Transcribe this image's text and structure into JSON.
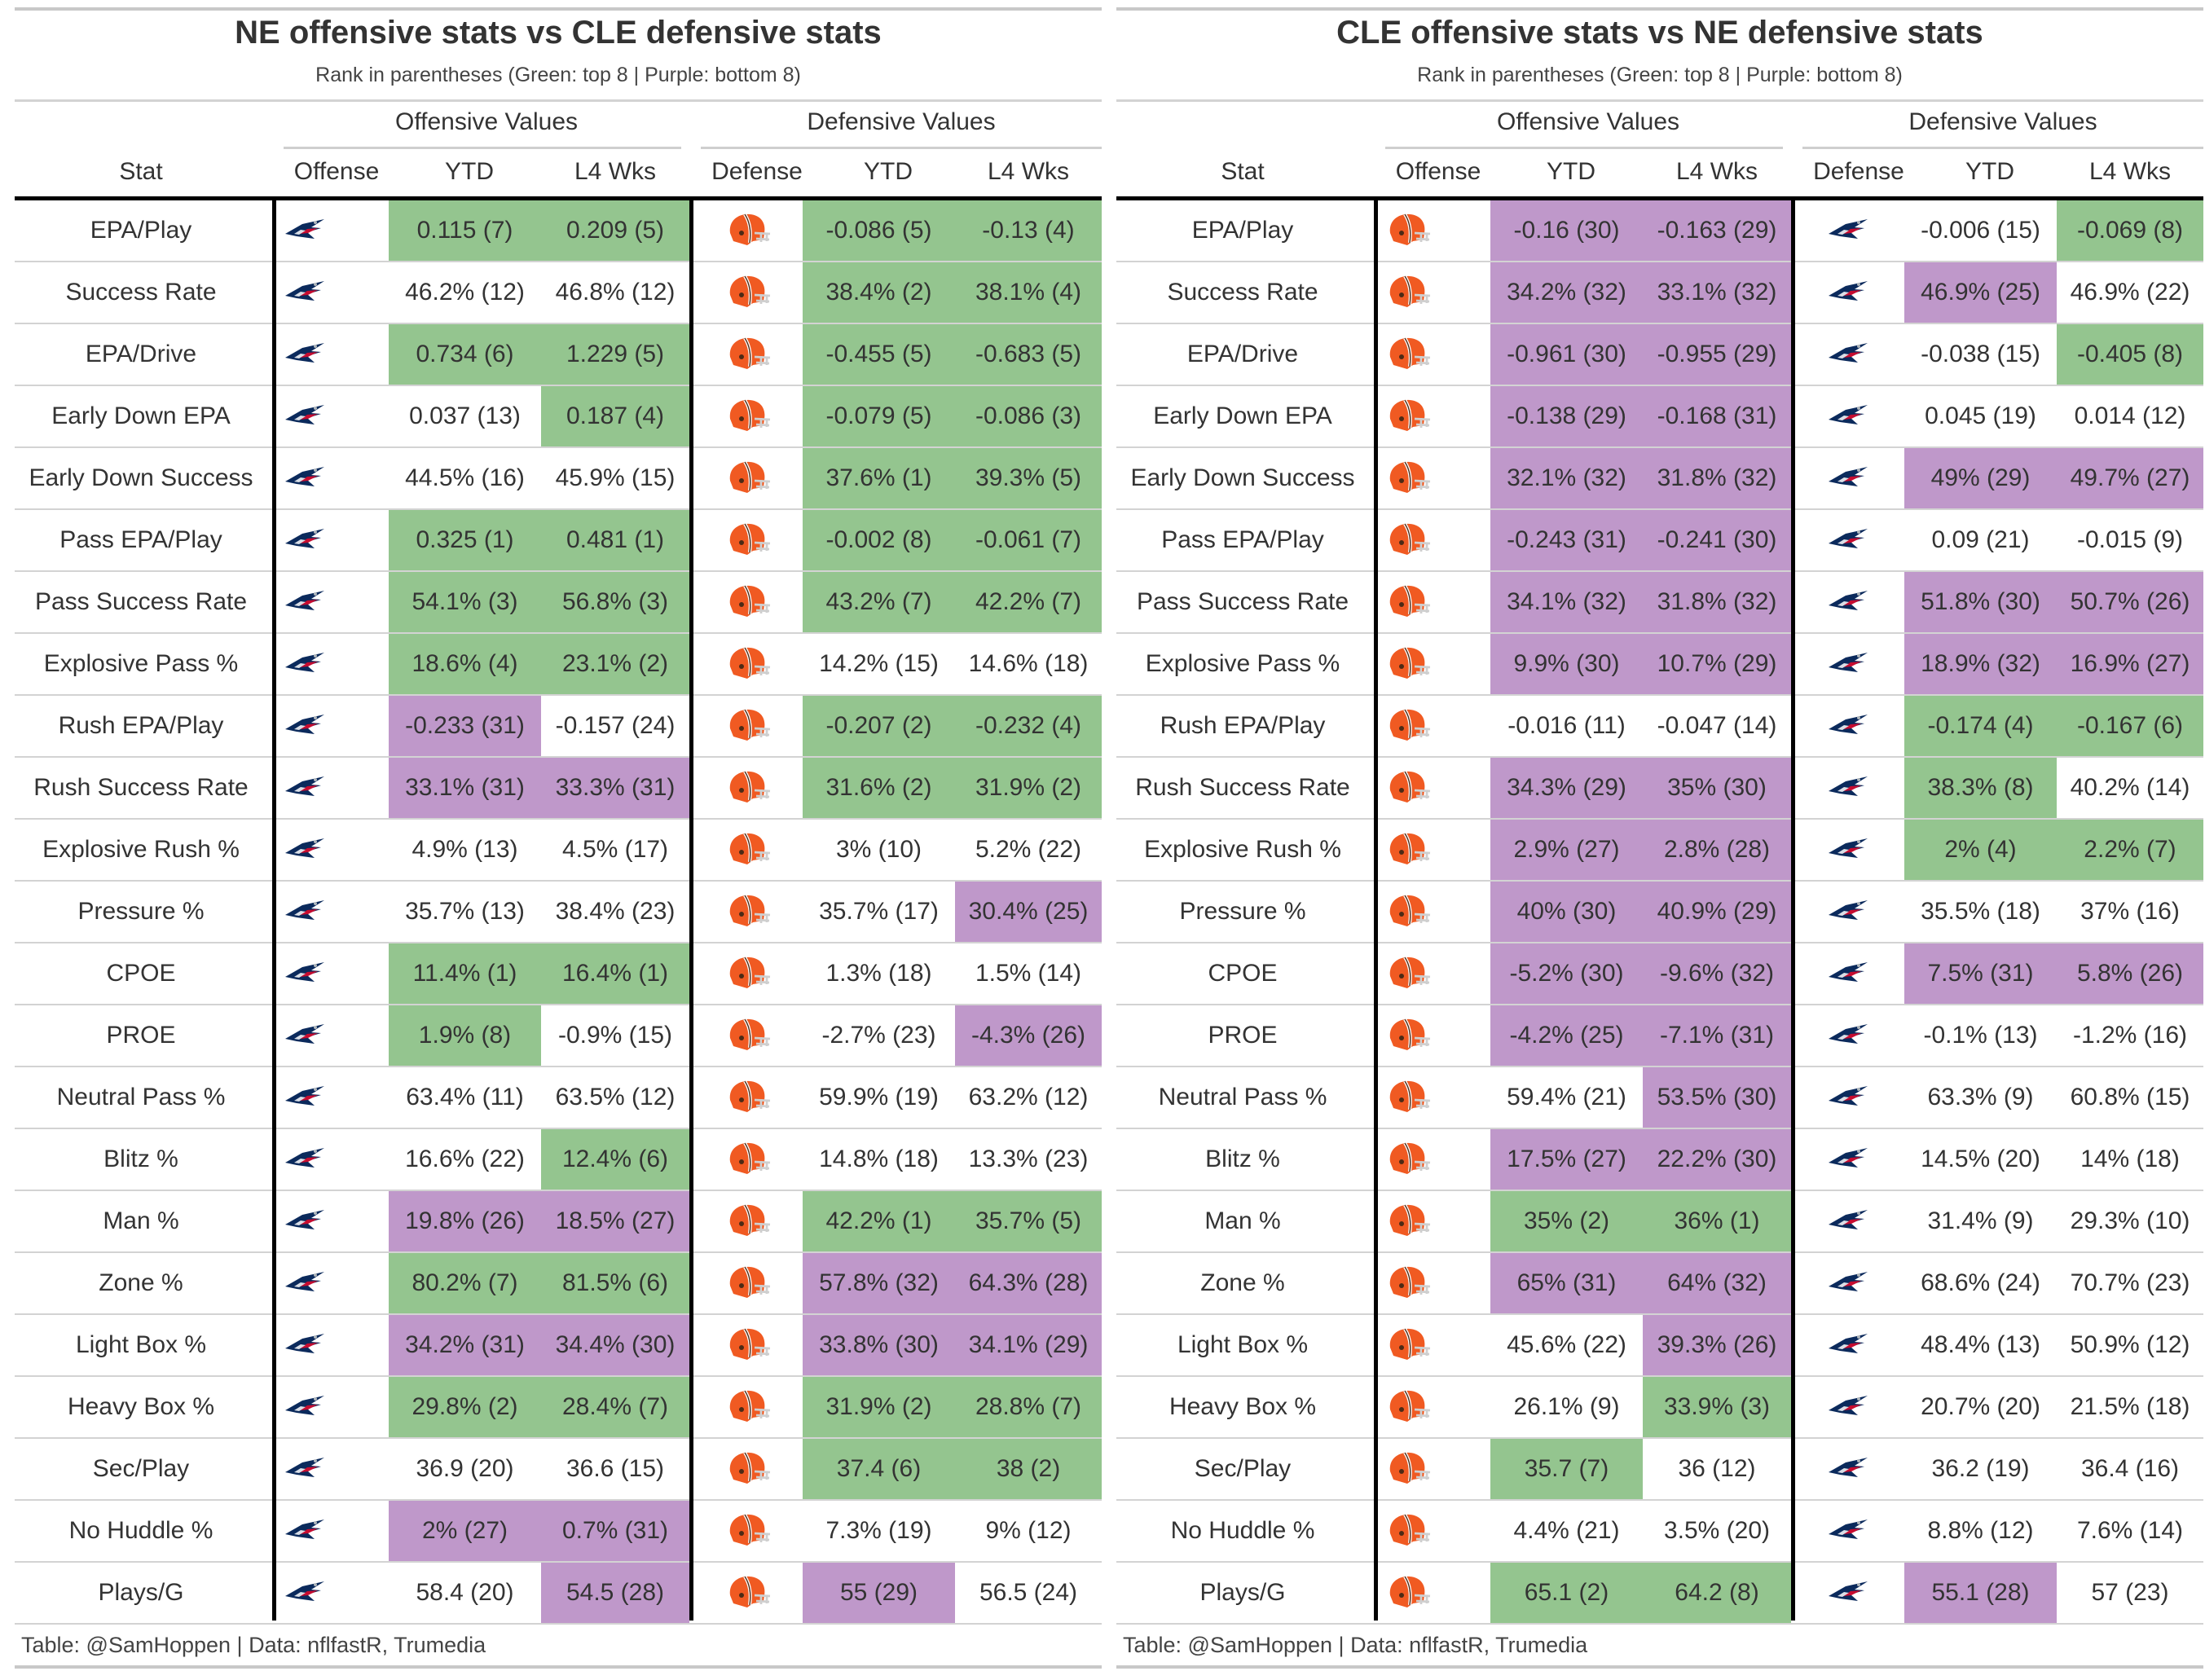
{
  "footer": "Table: @SamHoppen | Data: nflfastR, Trumedia",
  "column_headers": {
    "stat": "Stat",
    "offense": "Offense",
    "defense": "Defense",
    "ytd": "YTD",
    "l4": "L4 Wks"
  },
  "spanners": {
    "offensive": "Offensive Values",
    "defensive": "Defensive Values"
  },
  "logo_icons": {
    "ne": "patriots-logo-icon",
    "cle": "browns-helmet-icon"
  },
  "colors": {
    "green_top8": "#94c58f",
    "purple_bottom8": "#bf98ca"
  },
  "tables": [
    {
      "title": "NE offensive stats vs CLE defensive stats",
      "subtitle": "Rank in parentheses (Green: top 8 | Purple: bottom 8)",
      "offense_team": "ne",
      "defense_team": "cle",
      "rows": [
        {
          "stat": "EPA/Play",
          "off_ytd": "0.115 (7)",
          "off_ytd_c": "g",
          "off_l4": "0.209 (5)",
          "off_l4_c": "g",
          "def_ytd": "-0.086 (5)",
          "def_ytd_c": "g",
          "def_l4": "-0.13 (4)",
          "def_l4_c": "g"
        },
        {
          "stat": "Success Rate",
          "off_ytd": "46.2% (12)",
          "off_ytd_c": "",
          "off_l4": "46.8% (12)",
          "off_l4_c": "",
          "def_ytd": "38.4% (2)",
          "def_ytd_c": "g",
          "def_l4": "38.1% (4)",
          "def_l4_c": "g"
        },
        {
          "stat": "EPA/Drive",
          "off_ytd": "0.734 (6)",
          "off_ytd_c": "g",
          "off_l4": "1.229 (5)",
          "off_l4_c": "g",
          "def_ytd": "-0.455 (5)",
          "def_ytd_c": "g",
          "def_l4": "-0.683 (5)",
          "def_l4_c": "g"
        },
        {
          "stat": "Early Down EPA",
          "off_ytd": "0.037 (13)",
          "off_ytd_c": "",
          "off_l4": "0.187 (4)",
          "off_l4_c": "g",
          "def_ytd": "-0.079 (5)",
          "def_ytd_c": "g",
          "def_l4": "-0.086 (3)",
          "def_l4_c": "g"
        },
        {
          "stat": "Early Down Success",
          "off_ytd": "44.5% (16)",
          "off_ytd_c": "",
          "off_l4": "45.9% (15)",
          "off_l4_c": "",
          "def_ytd": "37.6% (1)",
          "def_ytd_c": "g",
          "def_l4": "39.3% (5)",
          "def_l4_c": "g"
        },
        {
          "stat": "Pass EPA/Play",
          "off_ytd": "0.325 (1)",
          "off_ytd_c": "g",
          "off_l4": "0.481 (1)",
          "off_l4_c": "g",
          "def_ytd": "-0.002 (8)",
          "def_ytd_c": "g",
          "def_l4": "-0.061 (7)",
          "def_l4_c": "g"
        },
        {
          "stat": "Pass Success Rate",
          "off_ytd": "54.1% (3)",
          "off_ytd_c": "g",
          "off_l4": "56.8% (3)",
          "off_l4_c": "g",
          "def_ytd": "43.2% (7)",
          "def_ytd_c": "g",
          "def_l4": "42.2% (7)",
          "def_l4_c": "g"
        },
        {
          "stat": "Explosive Pass %",
          "off_ytd": "18.6% (4)",
          "off_ytd_c": "g",
          "off_l4": "23.1% (2)",
          "off_l4_c": "g",
          "def_ytd": "14.2% (15)",
          "def_ytd_c": "",
          "def_l4": "14.6% (18)",
          "def_l4_c": ""
        },
        {
          "stat": "Rush EPA/Play",
          "off_ytd": "-0.233 (31)",
          "off_ytd_c": "p",
          "off_l4": "-0.157 (24)",
          "off_l4_c": "",
          "def_ytd": "-0.207 (2)",
          "def_ytd_c": "g",
          "def_l4": "-0.232 (4)",
          "def_l4_c": "g"
        },
        {
          "stat": "Rush Success Rate",
          "off_ytd": "33.1% (31)",
          "off_ytd_c": "p",
          "off_l4": "33.3% (31)",
          "off_l4_c": "p",
          "def_ytd": "31.6% (2)",
          "def_ytd_c": "g",
          "def_l4": "31.9% (2)",
          "def_l4_c": "g"
        },
        {
          "stat": "Explosive Rush %",
          "off_ytd": "4.9% (13)",
          "off_ytd_c": "",
          "off_l4": "4.5% (17)",
          "off_l4_c": "",
          "def_ytd": "3% (10)",
          "def_ytd_c": "",
          "def_l4": "5.2% (22)",
          "def_l4_c": ""
        },
        {
          "stat": "Pressure %",
          "off_ytd": "35.7% (13)",
          "off_ytd_c": "",
          "off_l4": "38.4% (23)",
          "off_l4_c": "",
          "def_ytd": "35.7% (17)",
          "def_ytd_c": "",
          "def_l4": "30.4% (25)",
          "def_l4_c": "p"
        },
        {
          "stat": "CPOE",
          "off_ytd": "11.4% (1)",
          "off_ytd_c": "g",
          "off_l4": "16.4% (1)",
          "off_l4_c": "g",
          "def_ytd": "1.3% (18)",
          "def_ytd_c": "",
          "def_l4": "1.5% (14)",
          "def_l4_c": ""
        },
        {
          "stat": "PROE",
          "off_ytd": "1.9% (8)",
          "off_ytd_c": "g",
          "off_l4": "-0.9% (15)",
          "off_l4_c": "",
          "def_ytd": "-2.7% (23)",
          "def_ytd_c": "",
          "def_l4": "-4.3% (26)",
          "def_l4_c": "p"
        },
        {
          "stat": "Neutral Pass %",
          "off_ytd": "63.4% (11)",
          "off_ytd_c": "",
          "off_l4": "63.5% (12)",
          "off_l4_c": "",
          "def_ytd": "59.9% (19)",
          "def_ytd_c": "",
          "def_l4": "63.2% (12)",
          "def_l4_c": ""
        },
        {
          "stat": "Blitz %",
          "off_ytd": "16.6% (22)",
          "off_ytd_c": "",
          "off_l4": "12.4% (6)",
          "off_l4_c": "g",
          "def_ytd": "14.8% (18)",
          "def_ytd_c": "",
          "def_l4": "13.3% (23)",
          "def_l4_c": ""
        },
        {
          "stat": "Man %",
          "off_ytd": "19.8% (26)",
          "off_ytd_c": "p",
          "off_l4": "18.5% (27)",
          "off_l4_c": "p",
          "def_ytd": "42.2% (1)",
          "def_ytd_c": "g",
          "def_l4": "35.7% (5)",
          "def_l4_c": "g"
        },
        {
          "stat": "Zone %",
          "off_ytd": "80.2% (7)",
          "off_ytd_c": "g",
          "off_l4": "81.5% (6)",
          "off_l4_c": "g",
          "def_ytd": "57.8% (32)",
          "def_ytd_c": "p",
          "def_l4": "64.3% (28)",
          "def_l4_c": "p"
        },
        {
          "stat": "Light Box %",
          "off_ytd": "34.2% (31)",
          "off_ytd_c": "p",
          "off_l4": "34.4% (30)",
          "off_l4_c": "p",
          "def_ytd": "33.8% (30)",
          "def_ytd_c": "p",
          "def_l4": "34.1% (29)",
          "def_l4_c": "p"
        },
        {
          "stat": "Heavy Box %",
          "off_ytd": "29.8% (2)",
          "off_ytd_c": "g",
          "off_l4": "28.4% (7)",
          "off_l4_c": "g",
          "def_ytd": "31.9% (2)",
          "def_ytd_c": "g",
          "def_l4": "28.8% (7)",
          "def_l4_c": "g"
        },
        {
          "stat": "Sec/Play",
          "off_ytd": "36.9 (20)",
          "off_ytd_c": "",
          "off_l4": "36.6 (15)",
          "off_l4_c": "",
          "def_ytd": "37.4 (6)",
          "def_ytd_c": "g",
          "def_l4": "38 (2)",
          "def_l4_c": "g"
        },
        {
          "stat": "No Huddle %",
          "off_ytd": "2% (27)",
          "off_ytd_c": "p",
          "off_l4": "0.7% (31)",
          "off_l4_c": "p",
          "def_ytd": "7.3% (19)",
          "def_ytd_c": "",
          "def_l4": "9% (12)",
          "def_l4_c": ""
        },
        {
          "stat": "Plays/G",
          "off_ytd": "58.4 (20)",
          "off_ytd_c": "",
          "off_l4": "54.5 (28)",
          "off_l4_c": "p",
          "def_ytd": "55 (29)",
          "def_ytd_c": "p",
          "def_l4": "56.5 (24)",
          "def_l4_c": ""
        }
      ]
    },
    {
      "title": "CLE offensive stats vs NE defensive stats",
      "subtitle": "Rank in parentheses (Green: top 8 | Purple: bottom 8)",
      "offense_team": "cle",
      "defense_team": "ne",
      "rows": [
        {
          "stat": "EPA/Play",
          "off_ytd": "-0.16 (30)",
          "off_ytd_c": "p",
          "off_l4": "-0.163 (29)",
          "off_l4_c": "p",
          "def_ytd": "-0.006 (15)",
          "def_ytd_c": "",
          "def_l4": "-0.069 (8)",
          "def_l4_c": "g"
        },
        {
          "stat": "Success Rate",
          "off_ytd": "34.2% (32)",
          "off_ytd_c": "p",
          "off_l4": "33.1% (32)",
          "off_l4_c": "p",
          "def_ytd": "46.9% (25)",
          "def_ytd_c": "p",
          "def_l4": "46.9% (22)",
          "def_l4_c": ""
        },
        {
          "stat": "EPA/Drive",
          "off_ytd": "-0.961 (30)",
          "off_ytd_c": "p",
          "off_l4": "-0.955 (29)",
          "off_l4_c": "p",
          "def_ytd": "-0.038 (15)",
          "def_ytd_c": "",
          "def_l4": "-0.405 (8)",
          "def_l4_c": "g"
        },
        {
          "stat": "Early Down EPA",
          "off_ytd": "-0.138 (29)",
          "off_ytd_c": "p",
          "off_l4": "-0.168 (31)",
          "off_l4_c": "p",
          "def_ytd": "0.045 (19)",
          "def_ytd_c": "",
          "def_l4": "0.014 (12)",
          "def_l4_c": ""
        },
        {
          "stat": "Early Down Success",
          "off_ytd": "32.1% (32)",
          "off_ytd_c": "p",
          "off_l4": "31.8% (32)",
          "off_l4_c": "p",
          "def_ytd": "49% (29)",
          "def_ytd_c": "p",
          "def_l4": "49.7% (27)",
          "def_l4_c": "p"
        },
        {
          "stat": "Pass EPA/Play",
          "off_ytd": "-0.243 (31)",
          "off_ytd_c": "p",
          "off_l4": "-0.241 (30)",
          "off_l4_c": "p",
          "def_ytd": "0.09 (21)",
          "def_ytd_c": "",
          "def_l4": "-0.015 (9)",
          "def_l4_c": ""
        },
        {
          "stat": "Pass Success Rate",
          "off_ytd": "34.1% (32)",
          "off_ytd_c": "p",
          "off_l4": "31.8% (32)",
          "off_l4_c": "p",
          "def_ytd": "51.8% (30)",
          "def_ytd_c": "p",
          "def_l4": "50.7% (26)",
          "def_l4_c": "p"
        },
        {
          "stat": "Explosive Pass %",
          "off_ytd": "9.9% (30)",
          "off_ytd_c": "p",
          "off_l4": "10.7% (29)",
          "off_l4_c": "p",
          "def_ytd": "18.9% (32)",
          "def_ytd_c": "p",
          "def_l4": "16.9% (27)",
          "def_l4_c": "p"
        },
        {
          "stat": "Rush EPA/Play",
          "off_ytd": "-0.016 (11)",
          "off_ytd_c": "",
          "off_l4": "-0.047 (14)",
          "off_l4_c": "",
          "def_ytd": "-0.174 (4)",
          "def_ytd_c": "g",
          "def_l4": "-0.167 (6)",
          "def_l4_c": "g"
        },
        {
          "stat": "Rush Success Rate",
          "off_ytd": "34.3% (29)",
          "off_ytd_c": "p",
          "off_l4": "35% (30)",
          "off_l4_c": "p",
          "def_ytd": "38.3% (8)",
          "def_ytd_c": "g",
          "def_l4": "40.2% (14)",
          "def_l4_c": ""
        },
        {
          "stat": "Explosive Rush %",
          "off_ytd": "2.9% (27)",
          "off_ytd_c": "p",
          "off_l4": "2.8% (28)",
          "off_l4_c": "p",
          "def_ytd": "2% (4)",
          "def_ytd_c": "g",
          "def_l4": "2.2% (7)",
          "def_l4_c": "g"
        },
        {
          "stat": "Pressure %",
          "off_ytd": "40% (30)",
          "off_ytd_c": "p",
          "off_l4": "40.9% (29)",
          "off_l4_c": "p",
          "def_ytd": "35.5% (18)",
          "def_ytd_c": "",
          "def_l4": "37% (16)",
          "def_l4_c": ""
        },
        {
          "stat": "CPOE",
          "off_ytd": "-5.2% (30)",
          "off_ytd_c": "p",
          "off_l4": "-9.6% (32)",
          "off_l4_c": "p",
          "def_ytd": "7.5% (31)",
          "def_ytd_c": "p",
          "def_l4": "5.8% (26)",
          "def_l4_c": "p"
        },
        {
          "stat": "PROE",
          "off_ytd": "-4.2% (25)",
          "off_ytd_c": "p",
          "off_l4": "-7.1% (31)",
          "off_l4_c": "p",
          "def_ytd": "-0.1% (13)",
          "def_ytd_c": "",
          "def_l4": "-1.2% (16)",
          "def_l4_c": ""
        },
        {
          "stat": "Neutral Pass %",
          "off_ytd": "59.4% (21)",
          "off_ytd_c": "",
          "off_l4": "53.5% (30)",
          "off_l4_c": "p",
          "def_ytd": "63.3% (9)",
          "def_ytd_c": "",
          "def_l4": "60.8% (15)",
          "def_l4_c": ""
        },
        {
          "stat": "Blitz %",
          "off_ytd": "17.5% (27)",
          "off_ytd_c": "p",
          "off_l4": "22.2% (30)",
          "off_l4_c": "p",
          "def_ytd": "14.5% (20)",
          "def_ytd_c": "",
          "def_l4": "14% (18)",
          "def_l4_c": ""
        },
        {
          "stat": "Man %",
          "off_ytd": "35% (2)",
          "off_ytd_c": "g",
          "off_l4": "36% (1)",
          "off_l4_c": "g",
          "def_ytd": "31.4% (9)",
          "def_ytd_c": "",
          "def_l4": "29.3% (10)",
          "def_l4_c": ""
        },
        {
          "stat": "Zone %",
          "off_ytd": "65% (31)",
          "off_ytd_c": "p",
          "off_l4": "64% (32)",
          "off_l4_c": "p",
          "def_ytd": "68.6% (24)",
          "def_ytd_c": "",
          "def_l4": "70.7% (23)",
          "def_l4_c": ""
        },
        {
          "stat": "Light Box %",
          "off_ytd": "45.6% (22)",
          "off_ytd_c": "",
          "off_l4": "39.3% (26)",
          "off_l4_c": "p",
          "def_ytd": "48.4% (13)",
          "def_ytd_c": "",
          "def_l4": "50.9% (12)",
          "def_l4_c": ""
        },
        {
          "stat": "Heavy Box %",
          "off_ytd": "26.1% (9)",
          "off_ytd_c": "",
          "off_l4": "33.9% (3)",
          "off_l4_c": "g",
          "def_ytd": "20.7% (20)",
          "def_ytd_c": "",
          "def_l4": "21.5% (18)",
          "def_l4_c": ""
        },
        {
          "stat": "Sec/Play",
          "off_ytd": "35.7 (7)",
          "off_ytd_c": "g",
          "off_l4": "36 (12)",
          "off_l4_c": "",
          "def_ytd": "36.2 (19)",
          "def_ytd_c": "",
          "def_l4": "36.4 (16)",
          "def_l4_c": ""
        },
        {
          "stat": "No Huddle %",
          "off_ytd": "4.4% (21)",
          "off_ytd_c": "",
          "off_l4": "3.5% (20)",
          "off_l4_c": "",
          "def_ytd": "8.8% (12)",
          "def_ytd_c": "",
          "def_l4": "7.6% (14)",
          "def_l4_c": ""
        },
        {
          "stat": "Plays/G",
          "off_ytd": "65.1 (2)",
          "off_ytd_c": "g",
          "off_l4": "64.2 (8)",
          "off_l4_c": "g",
          "def_ytd": "55.1 (28)",
          "def_ytd_c": "p",
          "def_l4": "57 (23)",
          "def_l4_c": ""
        }
      ]
    }
  ]
}
